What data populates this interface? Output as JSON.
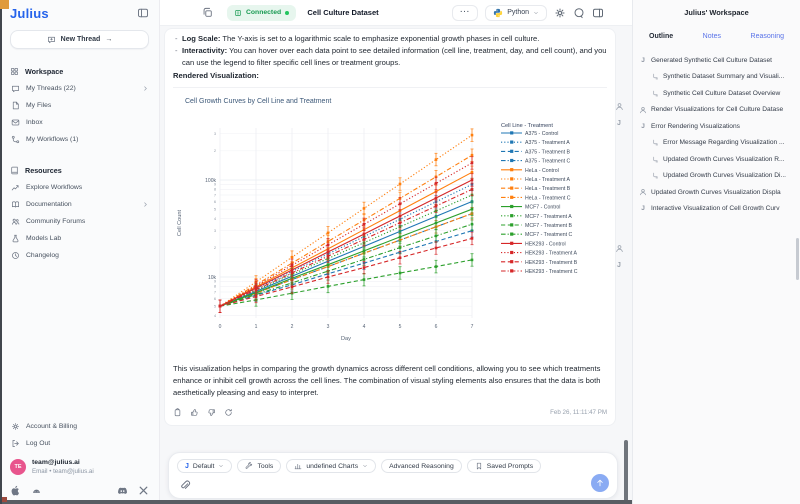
{
  "frame": {
    "corner_color": "#e09a3a"
  },
  "app": {
    "logo_text": "Julius"
  },
  "topbar": {
    "connection_status": "Connected",
    "title": "Cell Culture Dataset",
    "overflow_menu": "···",
    "kernel_name": "Python"
  },
  "sidebar": {
    "new_thread_label": "New Thread",
    "new_thread_arrow": "→",
    "sections": [
      {
        "title": "Workspace",
        "icon": "grid",
        "items": [
          {
            "icon": "chat",
            "label": "My Threads (22)",
            "chevron": true
          },
          {
            "icon": "file",
            "label": "My Files"
          },
          {
            "icon": "mail",
            "label": "Inbox"
          },
          {
            "icon": "workflow",
            "label": "My Workflows (1)"
          }
        ]
      },
      {
        "title": "Resources",
        "icon": "book",
        "items": [
          {
            "icon": "trend",
            "label": "Explore Workflows"
          },
          {
            "icon": "bookopen",
            "label": "Documentation",
            "chevron": true
          },
          {
            "icon": "people",
            "label": "Community Forums"
          },
          {
            "icon": "flask",
            "label": "Models Lab"
          },
          {
            "icon": "clock",
            "label": "Changelog"
          }
        ]
      }
    ],
    "footer_items": [
      {
        "icon": "gear",
        "label": "Account & Billing"
      },
      {
        "icon": "logout",
        "label": "Log Out"
      }
    ],
    "account": {
      "initials": "TE",
      "name": "team@julius.ai",
      "detail": "Email • team@julius.ai"
    },
    "social_icons": [
      "apple",
      "android",
      "discord",
      "x"
    ]
  },
  "message": {
    "bullets": [
      {
        "bold": "Log Scale:",
        "text": " The Y-axis is set to a logarithmic scale to emphasize exponential growth phases in cell culture."
      },
      {
        "bold": "Interactivity:",
        "text": " You can hover over each data point to see detailed information (cell line, treatment, day, and cell count), and you can use the legend to filter specific cell lines or treatment groups."
      }
    ],
    "rendered_label": "Rendered Visualization:",
    "closing_paragraph": "This visualization helps in comparing the growth dynamics across different cell conditions, allowing you to see which treatments enhance or inhibit cell growth across the cell lines. The combination of visual styling elements also ensures that the data is both aesthetically pleasing and easy to interpret.",
    "action_icons": [
      "clipboard",
      "thumbup",
      "thumbdown",
      "refresh"
    ],
    "timestamp": "Feb 26, 11:11:47 PM"
  },
  "gutter_icons": [
    "user",
    "julius",
    "user",
    "julius"
  ],
  "chart_data": {
    "type": "line",
    "title": "Cell Growth Curves by Cell Line and Treatment",
    "xlabel": "Day",
    "ylabel": "Cell Count",
    "yscale": "log",
    "ylim": [
      4000,
      330000
    ],
    "grid": true,
    "error_bars": true,
    "legend_title": "Cell Line - Treatment",
    "legend_position": "right",
    "x": [
      0,
      1,
      2,
      3,
      4,
      5,
      6,
      7
    ],
    "y_ticks": [
      {
        "value": 10000,
        "label": "10k"
      },
      {
        "value": 100000,
        "label": "100k"
      }
    ],
    "cell_line_colors": {
      "A375": "#1f77b4",
      "HeLa": "#ff7f0e",
      "MCF7": "#2ca02c",
      "HEK293": "#d62728"
    },
    "treatment_dashes": {
      "Control": "solid",
      "Treatment A": "dot",
      "Treatment B": "dash",
      "Treatment C": "dashdot"
    },
    "series": [
      {
        "name": "A375 - Control",
        "cell_line": "A375",
        "treatment": "Control",
        "values": [
          5000,
          7100,
          10200,
          14500,
          20700,
          29500,
          42100,
          60000
        ]
      },
      {
        "name": "A375 - Treatment A",
        "cell_line": "A375",
        "treatment": "Treatment A",
        "values": [
          5000,
          7600,
          11400,
          17300,
          26100,
          39400,
          59600,
          90000
        ]
      },
      {
        "name": "A375 - Treatment B",
        "cell_line": "A375",
        "treatment": "Treatment B",
        "values": [
          5000,
          6500,
          8300,
          10800,
          13900,
          18000,
          23200,
          30000
        ]
      },
      {
        "name": "A375 - Treatment C",
        "cell_line": "A375",
        "treatment": "Treatment C",
        "values": [
          5000,
          6800,
          9400,
          12800,
          17600,
          24000,
          32900,
          45000
        ]
      },
      {
        "name": "HeLa - Control",
        "cell_line": "HeLa",
        "treatment": "Control",
        "values": [
          5000,
          7900,
          12400,
          19500,
          30700,
          48400,
          76200,
          120000
        ]
      },
      {
        "name": "HeLa - Treatment A",
        "cell_line": "HeLa",
        "treatment": "Treatment A",
        "values": [
          5000,
          8900,
          16000,
          28500,
          50900,
          90900,
          162400,
          290000
        ]
      },
      {
        "name": "HeLa - Treatment B",
        "cell_line": "HeLa",
        "treatment": "Treatment B",
        "values": [
          5000,
          6800,
          9400,
          12800,
          17600,
          24000,
          32900,
          45000
        ]
      },
      {
        "name": "HeLa - Treatment C",
        "cell_line": "HeLa",
        "treatment": "Treatment C",
        "values": [
          5000,
          8300,
          13900,
          23200,
          38700,
          64600,
          107900,
          180000
        ]
      },
      {
        "name": "MCF7 - Control",
        "cell_line": "MCF7",
        "treatment": "Control",
        "values": [
          5000,
          6900,
          9700,
          13400,
          18600,
          25900,
          36000,
          50000
        ]
      },
      {
        "name": "MCF7 - Treatment A",
        "cell_line": "MCF7",
        "treatment": "Treatment A",
        "values": [
          5000,
          7300,
          10600,
          15500,
          22600,
          32900,
          48000,
          70000
        ]
      },
      {
        "name": "MCF7 - Treatment B",
        "cell_line": "MCF7",
        "treatment": "Treatment B",
        "values": [
          5000,
          5800,
          6800,
          8000,
          9400,
          11000,
          12800,
          15000
        ]
      },
      {
        "name": "MCF7 - Treatment C",
        "cell_line": "MCF7",
        "treatment": "Treatment C",
        "values": [
          5000,
          6600,
          8700,
          11500,
          15200,
          20100,
          26500,
          35000
        ]
      },
      {
        "name": "HEK293 - Control",
        "cell_line": "HEK293",
        "treatment": "Control",
        "values": [
          5000,
          7700,
          11800,
          18100,
          27700,
          42500,
          65200,
          100000
        ]
      },
      {
        "name": "HEK293 - Treatment A",
        "cell_line": "HEK293",
        "treatment": "Treatment A",
        "values": [
          5000,
          8100,
          13200,
          21500,
          34900,
          56800,
          92300,
          150000
        ]
      },
      {
        "name": "HEK293 - Treatment B",
        "cell_line": "HEK293",
        "treatment": "Treatment B",
        "values": [
          5000,
          6300,
          7900,
          10000,
          12500,
          15800,
          19900,
          25000
        ]
      },
      {
        "name": "HEK293 - Treatment C",
        "cell_line": "HEK293",
        "treatment": "Treatment C",
        "values": [
          5000,
          7400,
          11000,
          16400,
          24400,
          36200,
          53800,
          80000
        ]
      }
    ]
  },
  "composer": {
    "pills": [
      {
        "icon": "juliusj",
        "label": "Default",
        "chevron": true
      },
      {
        "icon": "wrench",
        "label": "Tools"
      },
      {
        "icon": "chart",
        "label": "undefined Charts",
        "chevron": true
      },
      {
        "label": "Advanced Reasoning"
      },
      {
        "icon": "bookmark",
        "label": "Saved Prompts"
      }
    ]
  },
  "right_panel": {
    "title": "Julius' Workspace",
    "tabs": [
      {
        "label": "Outline",
        "active": true
      },
      {
        "label": "Notes",
        "active": false
      },
      {
        "label": "Reasoning",
        "active": false
      }
    ],
    "outline": [
      {
        "icon": "julius",
        "level": 0,
        "label": "Generated Synthetic Cell Culture Dataset"
      },
      {
        "icon": "sub",
        "level": 1,
        "label": "Synthetic Dataset Summary and Visuali..."
      },
      {
        "icon": "sub",
        "level": 1,
        "label": "Synthetic Cell Culture Dataset Overview"
      },
      {
        "icon": "user",
        "level": 0,
        "label": "Render Visualizations for Cell Culture Datase"
      },
      {
        "icon": "julius",
        "level": 0,
        "label": "Error Rendering Visualizations"
      },
      {
        "icon": "sub",
        "level": 1,
        "label": "Error Message Regarding Visualization ..."
      },
      {
        "icon": "sub",
        "level": 1,
        "label": "Updated Growth Curves Visualization R..."
      },
      {
        "icon": "sub",
        "level": 1,
        "label": "Updated Growth Curves Visualization Di..."
      },
      {
        "icon": "user",
        "level": 0,
        "label": "Updated Growth Curves Visualization Displa"
      },
      {
        "icon": "julius",
        "level": 0,
        "label": "Interactive Visualization of Cell Growth Curv"
      }
    ]
  }
}
